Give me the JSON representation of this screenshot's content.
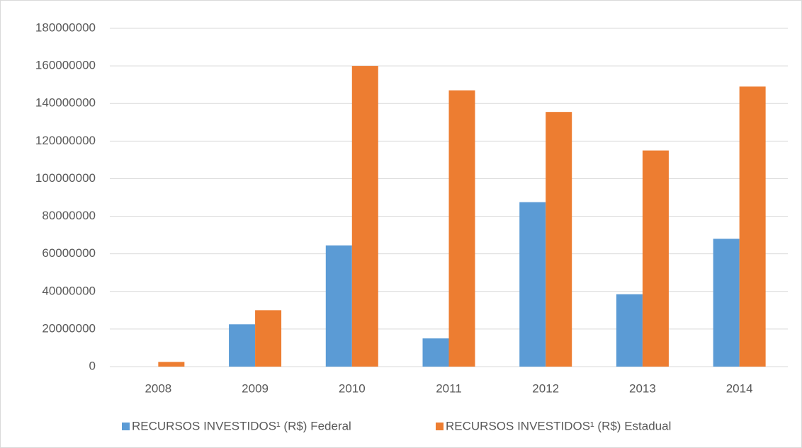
{
  "chart_data": {
    "type": "bar",
    "categories": [
      "2008",
      "2009",
      "2010",
      "2011",
      "2012",
      "2013",
      "2014"
    ],
    "series": [
      {
        "name": "RECURSOS INVESTIDOS¹ (R$) Federal",
        "color": "#5b9bd5",
        "values": [
          0,
          22500000,
          64500000,
          15000000,
          87500000,
          38500000,
          68000000
        ]
      },
      {
        "name": "RECURSOS INVESTIDOS¹ (R$) Estadual",
        "color": "#ed7d31",
        "values": [
          2500000,
          30000000,
          160000000,
          147000000,
          135500000,
          115000000,
          149000000
        ]
      }
    ],
    "ylim": [
      0,
      180000000
    ],
    "yticks": [
      0,
      20000000,
      40000000,
      60000000,
      80000000,
      100000000,
      120000000,
      140000000,
      160000000,
      180000000
    ],
    "grid": true,
    "legend": "bottom"
  }
}
